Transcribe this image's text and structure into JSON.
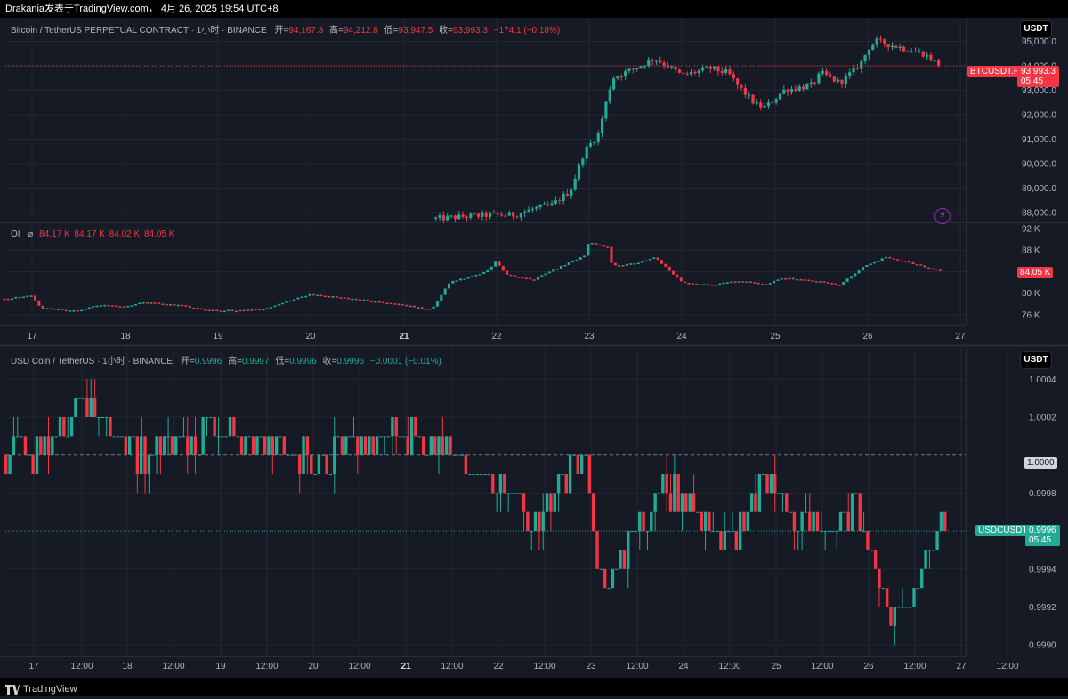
{
  "header": {
    "watermark": "Drakania发表于TradingView.com， 4月 26, 2025 19:54 UTC+8"
  },
  "top_chart": {
    "legend": {
      "symbol": "Bitcoin / TetherUS PERPETUAL CONTRACT · 1小时 · BINANCE",
      "open_label": "开=",
      "open": "94,167.3",
      "high_label": "高=",
      "high": "94,212.8",
      "low_label": "低=",
      "low": "93,947.5",
      "close_label": "收=",
      "close": "93,993.3",
      "change": "−174.1 (−0.18%)"
    },
    "unit_button": "USDT",
    "price_tag": {
      "symbol": "BTCUSDT.P",
      "price": "93,993.3",
      "countdown": "05:45"
    },
    "y_ticks": [
      "95,000.0",
      "94,000.0",
      "93,000.0",
      "92,000.0",
      "91,000.0",
      "90,000.0",
      "89,000.0",
      "88,000.0"
    ]
  },
  "oi_pane": {
    "legend": {
      "name": "OI",
      "icon": "⌀",
      "values": [
        "84.17 K",
        "84.17 K",
        "84.02 K",
        "84.05 K"
      ]
    },
    "y_ticks": [
      "92 K",
      "88 K",
      "84 K",
      "80 K",
      "76 K"
    ],
    "last_tag": "84.05 K"
  },
  "top_x_axis": [
    "17",
    "18",
    "19",
    "20",
    "21",
    "22",
    "23",
    "24",
    "25",
    "26",
    "27"
  ],
  "bottom_chart": {
    "legend": {
      "symbol": "USD Coin / TetherUS · 1小时 · BINANCE",
      "open_label": "开=",
      "open": "0.9996",
      "high_label": "高=",
      "high": "0.9997",
      "low_label": "低=",
      "low": "0.9996",
      "close_label": "收=",
      "close": "0.9996",
      "change": "−0.0001 (−0.01%)"
    },
    "unit_button": "USDT",
    "ref_tag": "1.0000",
    "price_tag": {
      "symbol": "USDCUSDT",
      "price": "0.9996",
      "countdown": "05:45"
    },
    "y_ticks": [
      "1.0004",
      "1.0002",
      "0.9998",
      "0.9994",
      "0.9992",
      "0.9990"
    ]
  },
  "bottom_x_axis": [
    "17",
    "12:00",
    "18",
    "12:00",
    "19",
    "12:00",
    "20",
    "12:00",
    "21",
    "12:00",
    "22",
    "12:00",
    "23",
    "12:00",
    "24",
    "12:00",
    "25",
    "12:00",
    "26",
    "12:00",
    "27",
    "12:00"
  ],
  "footer": {
    "brand": "TradingView"
  },
  "colors": {
    "up": "#22ab94",
    "down": "#f23645",
    "bg": "#161a25",
    "grid": "#232734"
  },
  "chart_data": [
    {
      "type": "candlestick",
      "title": "Bitcoin / TetherUS PERPETUAL CONTRACT · 1小时 · BINANCE",
      "x_categories": [
        "17",
        "18",
        "19",
        "20",
        "21",
        "22",
        "23",
        "24",
        "25",
        "26",
        "27"
      ],
      "ylim": [
        87600,
        95600
      ],
      "close_path_knots": [
        [
          21.35,
          87750
        ],
        [
          21.9,
          87900
        ],
        [
          22.2,
          87900
        ],
        [
          22.4,
          88150
        ],
        [
          22.6,
          88300
        ],
        [
          22.8,
          88900
        ],
        [
          22.95,
          90500
        ],
        [
          23.1,
          91200
        ],
        [
          23.25,
          93500
        ],
        [
          23.5,
          93900
        ],
        [
          23.7,
          94300
        ],
        [
          23.85,
          94000
        ],
        [
          24.0,
          93600
        ],
        [
          24.3,
          93900
        ],
        [
          24.5,
          93700
        ],
        [
          24.6,
          93200
        ],
        [
          24.8,
          92400
        ],
        [
          24.9,
          92300
        ],
        [
          25.1,
          93000
        ],
        [
          25.4,
          93200
        ],
        [
          25.5,
          93700
        ],
        [
          25.7,
          93300
        ],
        [
          25.85,
          93800
        ],
        [
          25.95,
          94200
        ],
        [
          26.0,
          94700
        ],
        [
          26.1,
          95000
        ],
        [
          26.4,
          94700
        ],
        [
          26.6,
          94500
        ],
        [
          26.75,
          94100
        ],
        [
          26.8,
          93993
        ]
      ],
      "last_price": 93993.3
    },
    {
      "type": "line",
      "title": "OI",
      "x_categories": [
        "17",
        "18",
        "19",
        "20",
        "21",
        "22",
        "23",
        "24",
        "25",
        "26",
        "27"
      ],
      "ylim": [
        74000,
        92000
      ],
      "knots": [
        [
          16.7,
          79000
        ],
        [
          17.0,
          79500
        ],
        [
          17.1,
          77200
        ],
        [
          17.5,
          76700
        ],
        [
          17.7,
          77800
        ],
        [
          18.0,
          77500
        ],
        [
          18.2,
          78300
        ],
        [
          18.6,
          77700
        ],
        [
          18.9,
          76800
        ],
        [
          19.3,
          76800
        ],
        [
          19.5,
          77100
        ],
        [
          19.8,
          78700
        ],
        [
          20.0,
          79800
        ],
        [
          20.4,
          79000
        ],
        [
          20.7,
          78500
        ],
        [
          21.0,
          77800
        ],
        [
          21.3,
          77000
        ],
        [
          21.5,
          82000
        ],
        [
          21.9,
          84000
        ],
        [
          22.0,
          86000
        ],
        [
          22.1,
          83500
        ],
        [
          22.4,
          82500
        ],
        [
          22.7,
          85000
        ],
        [
          22.95,
          87000
        ],
        [
          23.0,
          89500
        ],
        [
          23.2,
          88500
        ],
        [
          23.25,
          85000
        ],
        [
          23.5,
          85500
        ],
        [
          23.7,
          86700
        ],
        [
          23.85,
          84500
        ],
        [
          24.0,
          82000
        ],
        [
          24.3,
          81500
        ],
        [
          24.6,
          82300
        ],
        [
          24.9,
          81600
        ],
        [
          25.1,
          82800
        ],
        [
          25.5,
          82100
        ],
        [
          25.7,
          81500
        ],
        [
          25.95,
          84800
        ],
        [
          26.2,
          86700
        ],
        [
          26.6,
          85000
        ],
        [
          26.8,
          84050
        ]
      ],
      "last_value": 84050
    },
    {
      "type": "candlestick",
      "title": "USD Coin / TetherUS · 1小时 · BINANCE",
      "x_categories": [
        "17",
        "12:00",
        "18",
        "12:00",
        "19",
        "12:00",
        "20",
        "12:00",
        "21",
        "12:00",
        "22",
        "12:00",
        "23",
        "12:00",
        "24",
        "12:00",
        "25",
        "12:00",
        "26",
        "12:00",
        "27",
        "12:00"
      ],
      "ylim": [
        0.99894,
        1.00057
      ],
      "close_path_knots": [
        [
          16.7,
          1.0
        ],
        [
          17.1,
          1.0
        ],
        [
          17.6,
          1.0003
        ],
        [
          18.1,
          1.0
        ],
        [
          19.0,
          1.00015
        ],
        [
          20.0,
          1.0
        ],
        [
          21.0,
          1.0001
        ],
        [
          21.5,
          1.0
        ],
        [
          21.9,
          0.99985
        ],
        [
          22.4,
          0.99965
        ],
        [
          22.9,
          1.0
        ],
        [
          23.0,
          0.99985
        ],
        [
          23.1,
          0.9993
        ],
        [
          23.3,
          0.9994
        ],
        [
          23.5,
          0.9996
        ],
        [
          23.8,
          0.99985
        ],
        [
          24.2,
          0.9997
        ],
        [
          24.5,
          0.9995
        ],
        [
          24.7,
          0.9997
        ],
        [
          25.0,
          0.9999
        ],
        [
          25.2,
          0.9997
        ],
        [
          25.5,
          0.9996
        ],
        [
          25.9,
          0.9997
        ],
        [
          26.1,
          0.9993
        ],
        [
          26.3,
          0.99918
        ],
        [
          26.5,
          0.9993
        ],
        [
          26.7,
          0.9996
        ],
        [
          26.85,
          0.9996
        ]
      ],
      "last_price": 0.9996
    }
  ]
}
